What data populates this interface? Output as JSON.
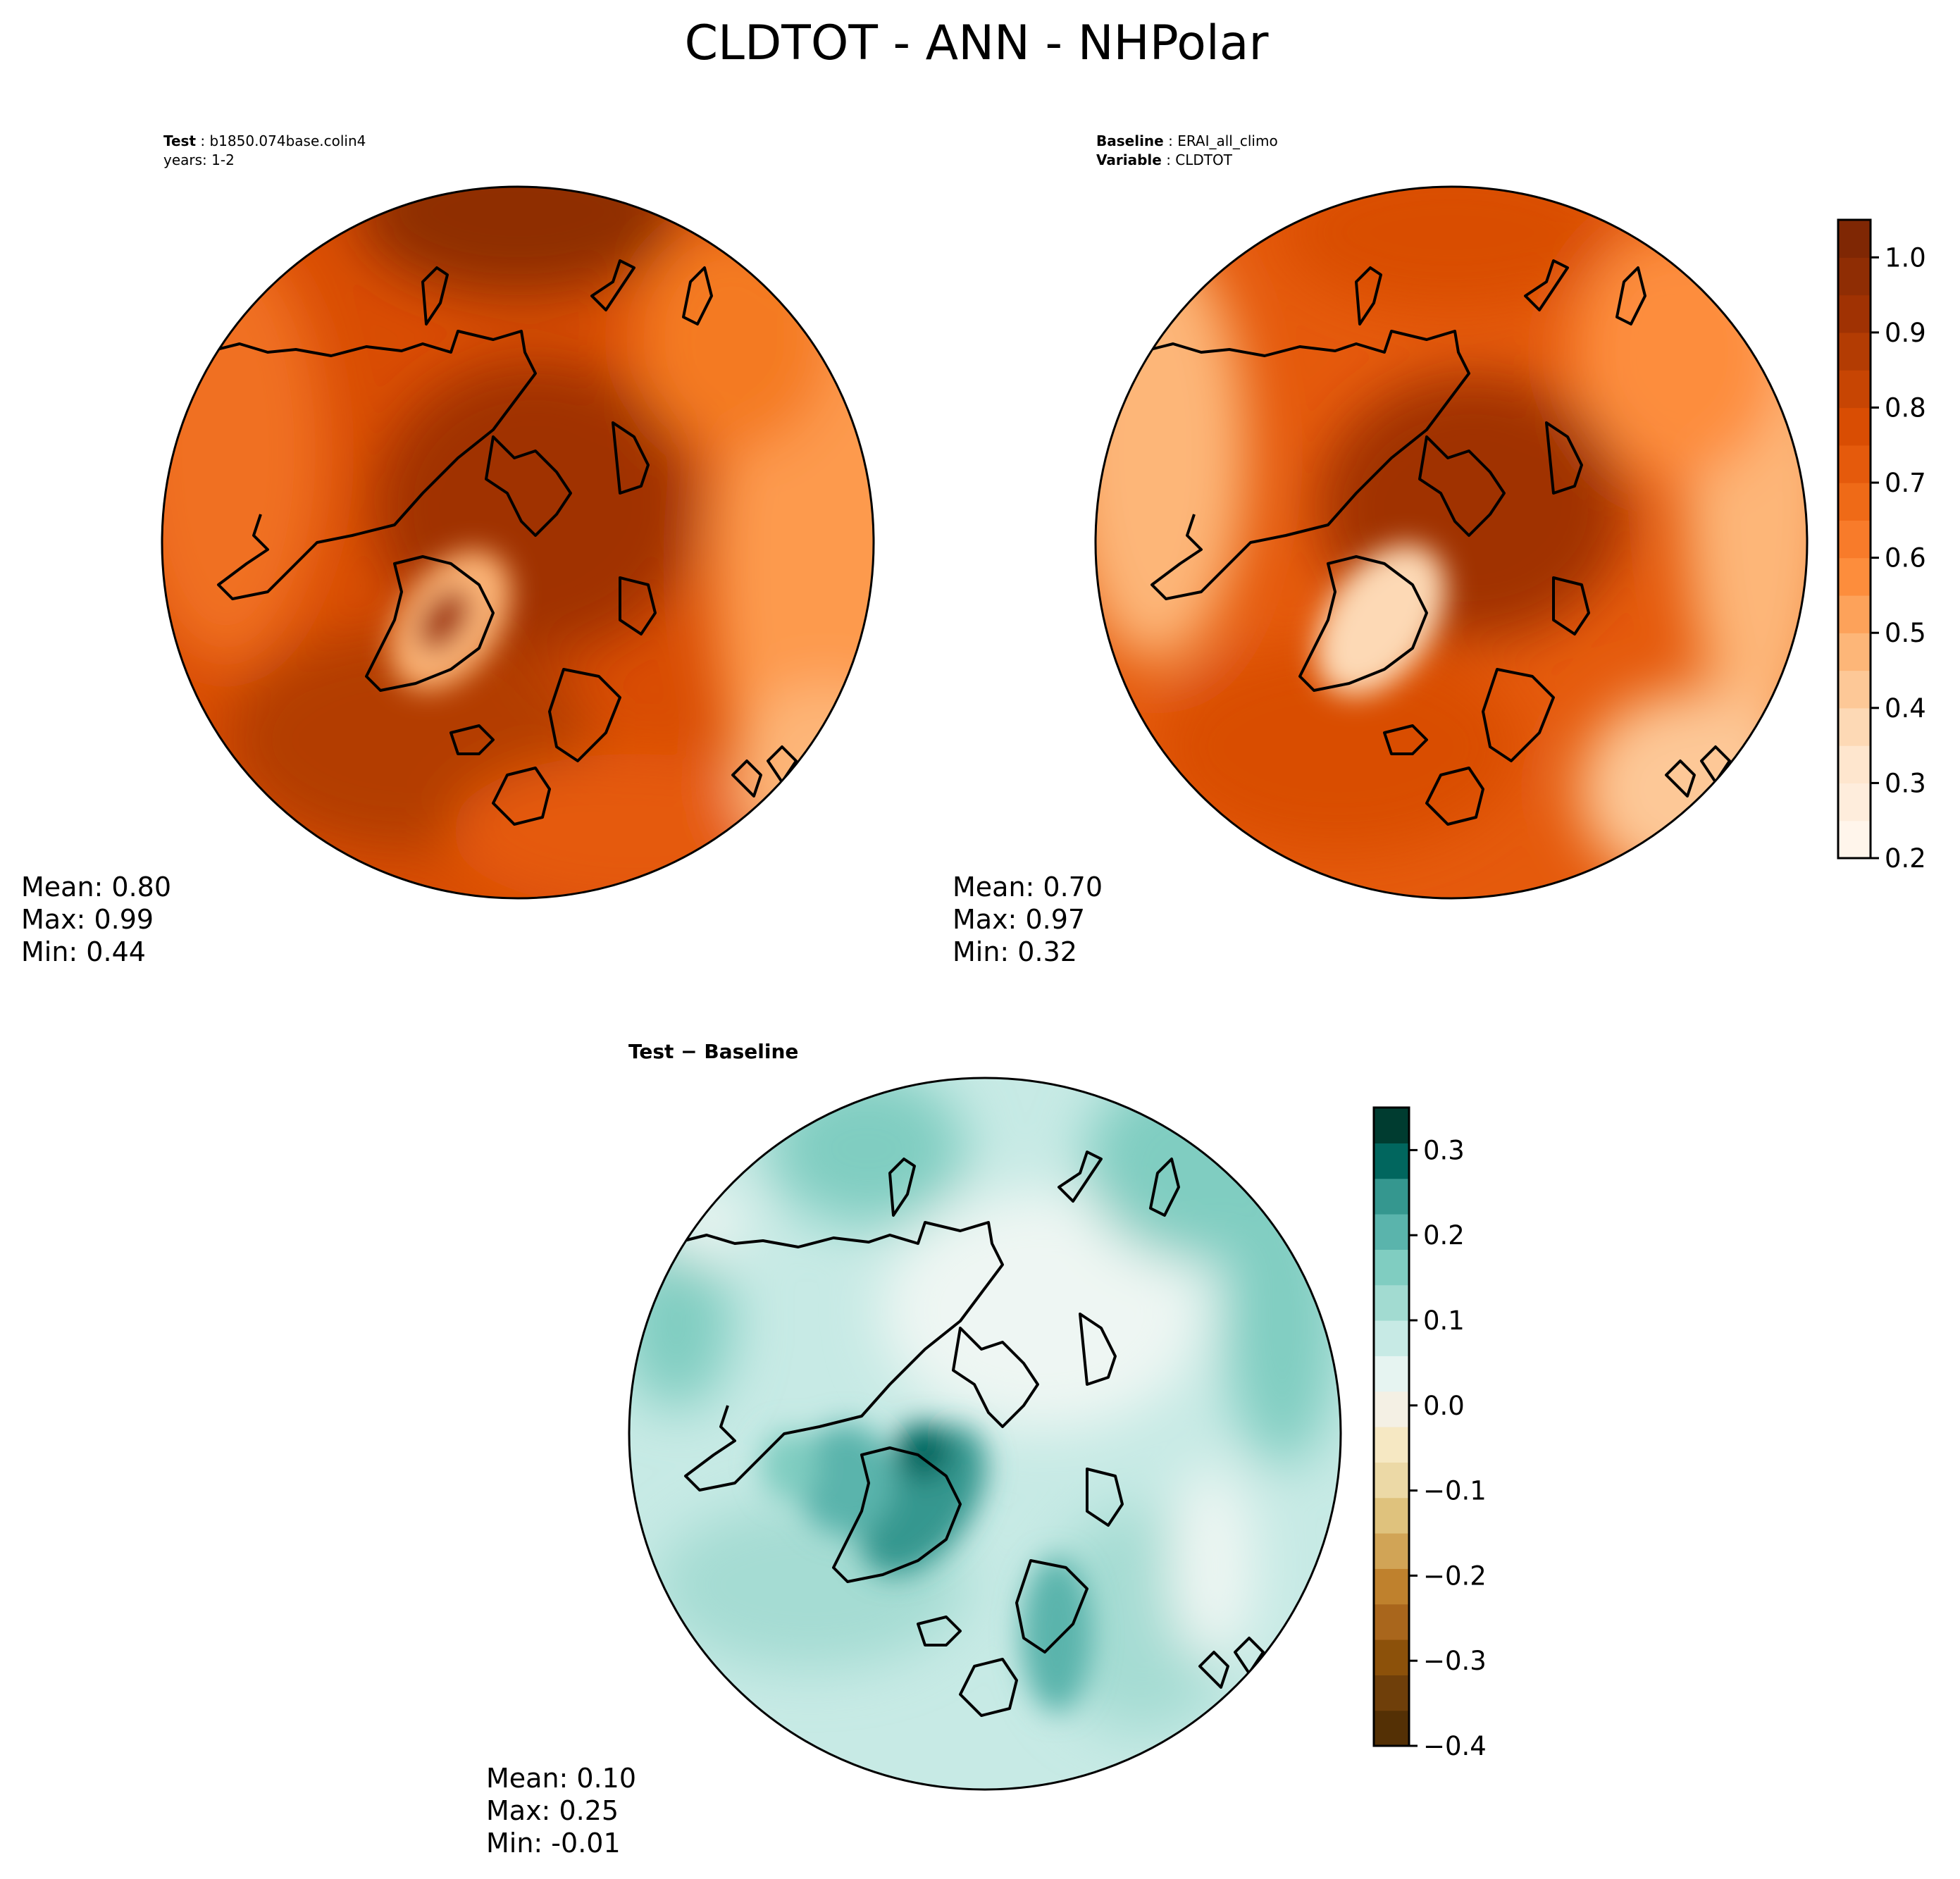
{
  "figure": {
    "title": "CLDTOT - ANN - NHPolar"
  },
  "panels": {
    "test": {
      "header_label": "Test",
      "header_value": "b1850.074base.colin4",
      "header_line2": "years: 1-2",
      "mean": "Mean:  0.80",
      "max": "Max:  0.99",
      "min": "Min:  0.44",
      "palette": [
        "#fff5eb",
        "#fee6ce",
        "#fdd0a2",
        "#fdae6b",
        "#fd8d3c",
        "#f16913",
        "#e6550d",
        "#d94801",
        "#c44103",
        "#a63603",
        "#8a2e04",
        "#7f2704"
      ]
    },
    "baseline": {
      "header_label": "Baseline",
      "header_value": "ERAI_all_climo",
      "header_label2": "Variable",
      "header_value2": "CLDTOT",
      "mean": "Mean:  0.70",
      "max": "Max:  0.97",
      "min": "Min:  0.32",
      "palette": [
        "#fff5eb",
        "#fee6ce",
        "#fdd0a2",
        "#fdae6b",
        "#fd8d3c",
        "#f16913",
        "#e6550d",
        "#d94801",
        "#c44103",
        "#a63603",
        "#8a2e04",
        "#7f2704"
      ]
    },
    "diff": {
      "header": "Test − Baseline",
      "mean": "Mean:  0.10",
      "max": "Max:  0.25",
      "min": "Min: -0.01",
      "palette": [
        "#f5f5f5",
        "#e6f4f1",
        "#c7eae5",
        "#a5dcd3",
        "#80cdc1",
        "#5ab4ac",
        "#35978f",
        "#01665e"
      ]
    }
  },
  "colorbars": {
    "main": {
      "min": 0.2,
      "max": 1.05,
      "ticks": [
        "0.2",
        "0.3",
        "0.4",
        "0.5",
        "0.6",
        "0.7",
        "0.8",
        "0.9",
        "1.0"
      ],
      "tick_values": [
        0.2,
        0.3,
        0.4,
        0.5,
        0.6,
        0.7,
        0.8,
        0.9,
        1.0
      ],
      "colors": [
        "#fff5eb",
        "#feeddc",
        "#fee6ce",
        "#fdd9b5",
        "#fdc897",
        "#fdb678",
        "#fda25a",
        "#fd8d3c",
        "#f87b2a",
        "#ef6a17",
        "#e55a0c",
        "#d94d03",
        "#c74503",
        "#b33c03",
        "#a03203",
        "#8f2d04",
        "#7f2704"
      ]
    },
    "diff": {
      "min": -0.4,
      "max": 0.35,
      "ticks": [
        "−0.4",
        "−0.3",
        "−0.2",
        "−0.1",
        "0.0",
        "0.1",
        "0.2",
        "0.3"
      ],
      "tick_values": [
        -0.4,
        -0.3,
        -0.2,
        -0.1,
        0.0,
        0.1,
        0.2,
        0.3
      ],
      "colors": [
        "#543005",
        "#6f3f0a",
        "#8c510a",
        "#a9661c",
        "#bf812d",
        "#d1a456",
        "#dfc27d",
        "#ecd9a6",
        "#f6e8c3",
        "#f4f0e4",
        "#e6f4f1",
        "#c7eae5",
        "#a2dbd1",
        "#80cdc1",
        "#5ab4ac",
        "#35978f",
        "#01665e",
        "#003c30"
      ]
    }
  }
}
